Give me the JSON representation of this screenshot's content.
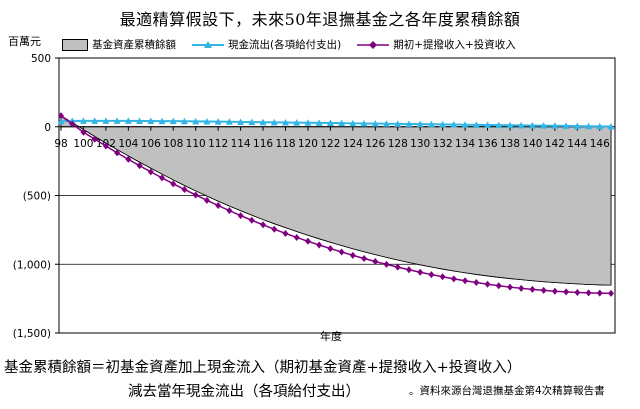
{
  "chart_data": {
    "type": "area",
    "title": "最適精算假設下，未來50年退撫基金之各年度累積餘額",
    "unit_label": "百萬元",
    "xlabel": "年度",
    "ylabel": "百萬元",
    "ylim": [
      -1500,
      500
    ],
    "yticks": [
      500,
      0,
      -500,
      -1000,
      -1500
    ],
    "ytick_labels": [
      "500",
      "0",
      "(500)",
      "(1,000)",
      "(1,500)"
    ],
    "x": [
      98,
      99,
      100,
      101,
      102,
      103,
      104,
      105,
      106,
      107,
      108,
      109,
      110,
      111,
      112,
      113,
      114,
      115,
      116,
      117,
      118,
      119,
      120,
      121,
      122,
      123,
      124,
      125,
      126,
      127,
      128,
      129,
      130,
      131,
      132,
      133,
      134,
      135,
      136,
      137,
      138,
      139,
      140,
      141,
      142,
      143,
      144,
      145,
      146,
      147
    ],
    "xticks": [
      98,
      100,
      102,
      104,
      106,
      108,
      110,
      112,
      114,
      116,
      118,
      120,
      122,
      124,
      126,
      128,
      130,
      132,
      134,
      136,
      138,
      140,
      142,
      144,
      146
    ],
    "grid_y": [
      -500,
      -1000
    ],
    "legend_position": "top",
    "series": [
      {
        "name": "基金資產累積餘額",
        "style": "area",
        "color": "#c0c0c0",
        "values": [
          80,
          30,
          -20,
          -70,
          -118,
          -166,
          -212,
          -257,
          -301,
          -344,
          -386,
          -427,
          -466,
          -504,
          -541,
          -576,
          -610,
          -643,
          -675,
          -705,
          -734,
          -762,
          -789,
          -815,
          -840,
          -864,
          -887,
          -909,
          -930,
          -950,
          -969,
          -987,
          -1004,
          -1020,
          -1035,
          -1049,
          -1062,
          -1074,
          -1085,
          -1095,
          -1104,
          -1112,
          -1120,
          -1127,
          -1133,
          -1138,
          -1143,
          -1147,
          -1150,
          -1152
        ]
      },
      {
        "name": "現金流出(各項給付支出)",
        "style": "line",
        "marker": "triangle",
        "color": "#33b5e5",
        "values": [
          40,
          42,
          43,
          43,
          43,
          43,
          43,
          42,
          42,
          41,
          41,
          40,
          39,
          38,
          37,
          36,
          35,
          34,
          33,
          32,
          31,
          30,
          29,
          28,
          27,
          26,
          25,
          24,
          23,
          22,
          21,
          20,
          19,
          18,
          17,
          16,
          15,
          14,
          13,
          12,
          11,
          10,
          9,
          8,
          7,
          6,
          5,
          4,
          3,
          2
        ]
      },
      {
        "name": "期初+提撥收入+投資收入",
        "style": "line",
        "marker": "diamond",
        "color": "#800080",
        "values": [
          80,
          20,
          -40,
          -90,
          -140,
          -190,
          -237,
          -283,
          -328,
          -372,
          -415,
          -456,
          -496,
          -535,
          -573,
          -610,
          -646,
          -680,
          -713,
          -745,
          -776,
          -805,
          -833,
          -860,
          -886,
          -911,
          -935,
          -958,
          -980,
          -1001,
          -1021,
          -1040,
          -1058,
          -1075,
          -1091,
          -1106,
          -1120,
          -1133,
          -1145,
          -1156,
          -1166,
          -1175,
          -1183,
          -1190,
          -1196,
          -1201,
          -1205,
          -1208,
          -1210,
          -1212
        ]
      }
    ]
  },
  "formula": {
    "line1_lhs": "基金累積餘額",
    "eq": "＝",
    "line1_rhs": "初基金資產加上現金流入（期初基金資產+提撥收入+投資收入）",
    "line2": "減去當年現金流出（各項給付支出）",
    "source": "。資料來源台灣退撫基金第4次精算報告書"
  }
}
